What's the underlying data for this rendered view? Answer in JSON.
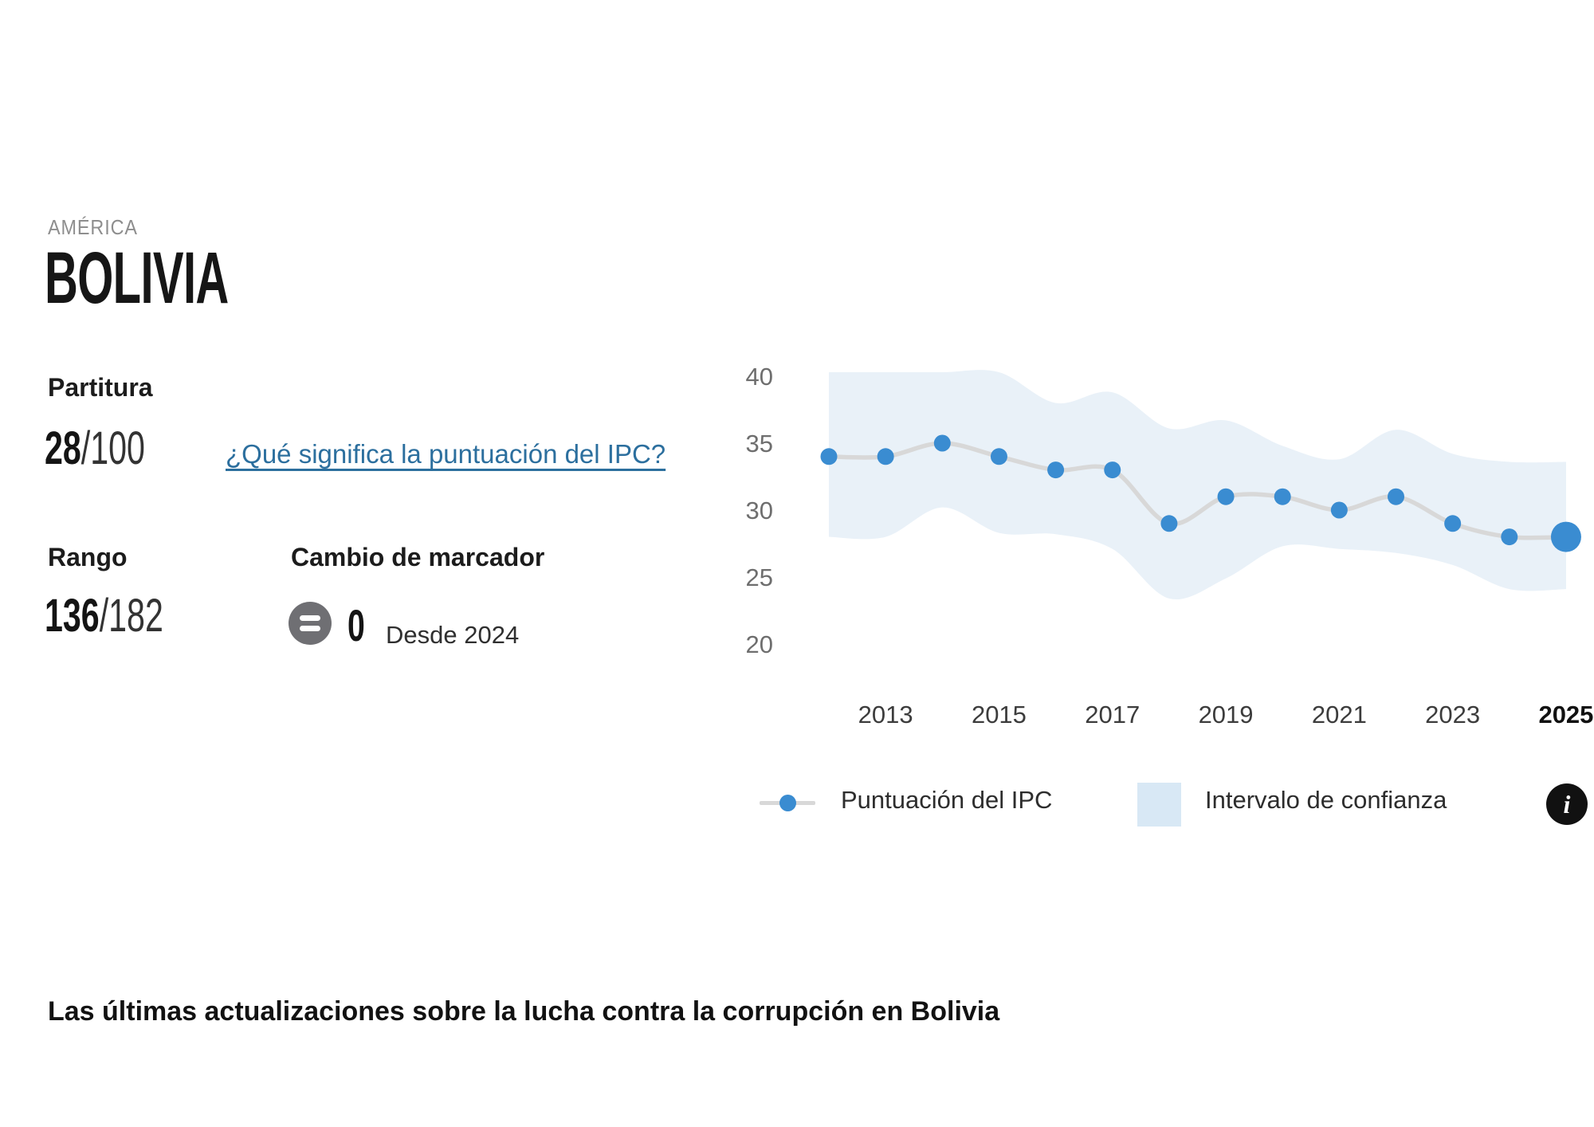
{
  "header": {
    "region": "AMÉRICA",
    "country": "BOLIVIA"
  },
  "score": {
    "heading": "Partitura",
    "value": "28",
    "max": "/100",
    "link_label": "¿Qué significa la puntuación del IPC?"
  },
  "rank": {
    "heading": "Rango",
    "value": "136",
    "max": "/182"
  },
  "change": {
    "heading": "Cambio de marcador",
    "value": "0",
    "since": "Desde 2024",
    "equals_icon": "equals"
  },
  "legend": {
    "series_label": "Puntuación del IPC",
    "band_label": "Intervalo de confianza",
    "info_glyph": "i"
  },
  "footer": {
    "heading": "Las últimas actualizaciones sobre la lucha contra la corrupción en Bolivia"
  },
  "chart_data": {
    "type": "line",
    "title": "CPI score trend Bolivia",
    "x": [
      2012,
      2013,
      2014,
      2015,
      2016,
      2017,
      2018,
      2019,
      2020,
      2021,
      2022,
      2023,
      2024,
      2025
    ],
    "series": [
      {
        "name": "Puntuación del IPC",
        "values": [
          34,
          34,
          35,
          34,
          33,
          33,
          29,
          31,
          31,
          30,
          31,
          29,
          28,
          28
        ]
      }
    ],
    "confidence_band": {
      "name": "Intervalo de confianza",
      "upper": [
        40.3,
        40.3,
        40.3,
        40.3,
        38.0,
        38.8,
        36.1,
        36.7,
        34.8,
        33.8,
        36.0,
        34.2,
        33.6,
        33.6
      ],
      "lower": [
        28.0,
        28.0,
        30.2,
        28.3,
        28.2,
        27.1,
        23.4,
        24.9,
        27.3,
        27.1,
        26.8,
        25.9,
        24.1,
        24.1
      ]
    },
    "yticks": [
      20,
      25,
      30,
      35,
      40
    ],
    "xticks": [
      2013,
      2015,
      2017,
      2019,
      2021,
      2023,
      2025
    ],
    "highlighted_xtick": 2025,
    "ylim": [
      18,
      42
    ],
    "grid": false,
    "legend_position": "bottom"
  },
  "colors": {
    "dot_blue": "#3A8CD1",
    "band_fill": "#E9F1F8",
    "legend_square": "#D8E8F5",
    "line_gray": "#D8D8D8",
    "link_blue": "#2C6F9E",
    "equals_circle": "#6F6F73",
    "info_bg": "#111111",
    "ytick_gray": "#6E6E6E",
    "xtick_dark": "#3C3C3C"
  }
}
